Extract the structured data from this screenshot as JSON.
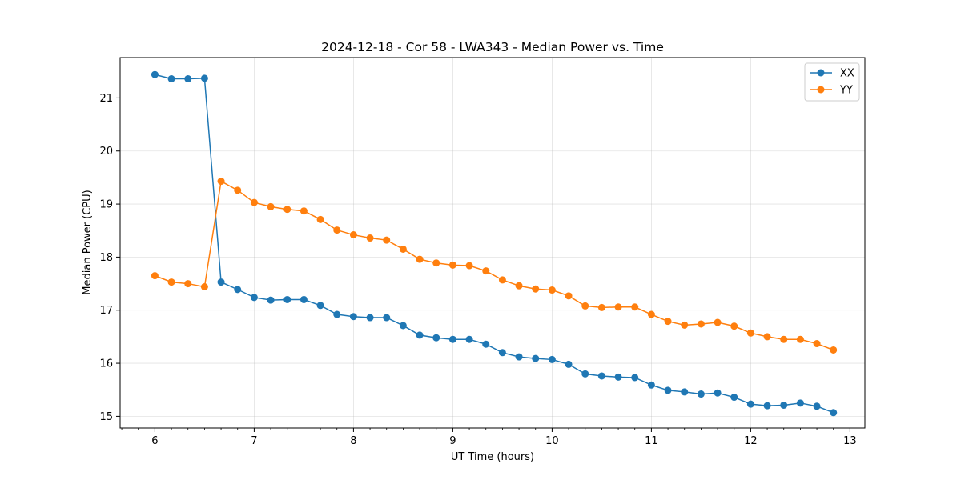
{
  "chart_data": {
    "type": "line",
    "title": "2024-12-18 - Cor 58 - LWA343 - Median Power vs. Time",
    "xlabel": "UT Time (hours)",
    "ylabel": "Median Power (CPU)",
    "xlim": [
      5.65,
      13.15
    ],
    "ylim": [
      14.78,
      21.76
    ],
    "xticks": [
      6,
      7,
      8,
      9,
      10,
      11,
      12,
      13
    ],
    "xtick_labels": [
      "6",
      "7",
      "8",
      "9",
      "10",
      "11",
      "12",
      "13"
    ],
    "yticks": [
      15,
      16,
      17,
      18,
      19,
      20,
      21
    ],
    "ytick_labels": [
      "15",
      "16",
      "17",
      "18",
      "19",
      "20",
      "21"
    ],
    "grid": true,
    "legend_position": "top-right",
    "x": [
      6.0,
      6.1667,
      6.3333,
      6.5,
      6.6667,
      6.8333,
      7.0,
      7.1667,
      7.3333,
      7.5,
      7.6667,
      7.8333,
      8.0,
      8.1667,
      8.3333,
      8.5,
      8.6667,
      8.8333,
      9.0,
      9.1667,
      9.3333,
      9.5,
      9.6667,
      9.8333,
      10.0,
      10.1667,
      10.3333,
      10.5,
      10.6667,
      10.8333,
      11.0,
      11.1667,
      11.3333,
      11.5,
      11.6667,
      11.8333,
      12.0,
      12.1667,
      12.3333,
      12.5,
      12.6667,
      12.8333
    ],
    "series": [
      {
        "name": "XX",
        "color": "#1f77b4",
        "values": [
          21.44,
          21.36,
          21.36,
          21.37,
          17.53,
          17.39,
          17.24,
          17.19,
          17.2,
          17.2,
          17.09,
          16.92,
          16.88,
          16.86,
          16.86,
          16.71,
          16.53,
          16.48,
          16.45,
          16.45,
          16.36,
          16.2,
          16.12,
          16.09,
          16.07,
          15.98,
          15.8,
          15.76,
          15.74,
          15.73,
          15.59,
          15.49,
          15.46,
          15.42,
          15.44,
          15.36,
          15.23,
          15.2,
          15.21,
          15.25,
          15.19,
          15.07
        ]
      },
      {
        "name": "YY",
        "color": "#ff7f0e",
        "values": [
          17.65,
          17.53,
          17.5,
          17.44,
          19.43,
          19.26,
          19.03,
          18.95,
          18.9,
          18.87,
          18.71,
          18.51,
          18.42,
          18.36,
          18.32,
          18.15,
          17.96,
          17.89,
          17.85,
          17.84,
          17.74,
          17.57,
          17.46,
          17.4,
          17.38,
          17.27,
          17.08,
          17.05,
          17.06,
          17.06,
          16.92,
          16.79,
          16.72,
          16.74,
          16.77,
          16.7,
          16.57,
          16.5,
          16.45,
          16.45,
          16.37,
          16.25
        ]
      }
    ]
  }
}
